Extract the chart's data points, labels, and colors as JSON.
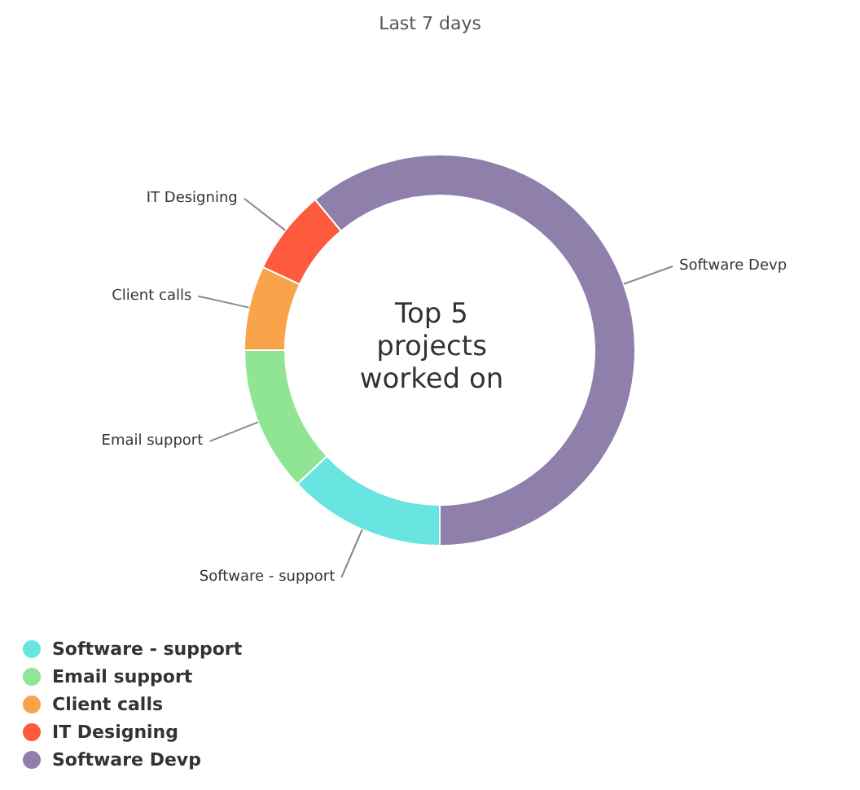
{
  "chart_data": {
    "type": "donut",
    "title": "Last 7 days",
    "annotations": [
      "Top 5 projects worked on"
    ],
    "categories": [
      "Software - support",
      "Email support",
      "Client calls",
      "IT Designing",
      "Software Devp"
    ],
    "values": [
      13,
      12,
      7,
      7,
      61
    ],
    "colors": [
      "#68e5e0",
      "#90e594",
      "#f9a44a",
      "#fd5a3e",
      "#8e7fab"
    ],
    "legend": "bottom left"
  }
}
